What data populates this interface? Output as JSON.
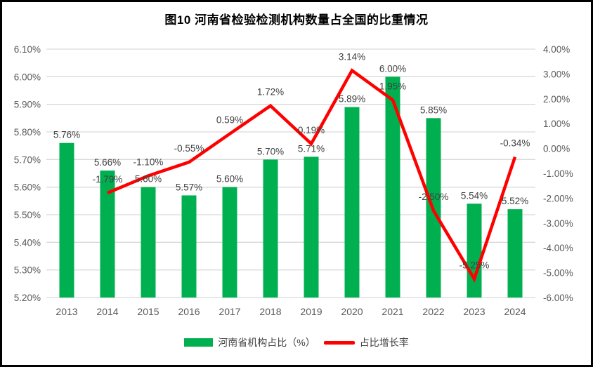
{
  "title": "图10  河南省检验检测机构数量占全国的比重情况",
  "legend": {
    "bar_label": "河南省机构占比（%）",
    "line_label": "占比增长率"
  },
  "colors": {
    "bar": "#00B050",
    "line": "#FF0000",
    "grid": "#D9D9D9",
    "axis_line": "#D9D9D9",
    "tick_text": "#595959",
    "data_label_text": "#404040",
    "background": "#FFFFFF",
    "border": "#000000"
  },
  "chart_data": {
    "type": "bar",
    "subtype": "combo-bar-line-dual-axis",
    "title": "图10  河南省检验检测机构数量占全国的比重情况",
    "categories": [
      "2013",
      "2014",
      "2015",
      "2016",
      "2017",
      "2018",
      "2019",
      "2020",
      "2021",
      "2022",
      "2023",
      "2024"
    ],
    "series": [
      {
        "name": "河南省机构占比（%）",
        "type": "bar",
        "axis": "left",
        "color": "#00B050",
        "values": [
          5.76,
          5.66,
          5.6,
          5.57,
          5.6,
          5.7,
          5.71,
          5.89,
          6.0,
          5.85,
          5.54,
          5.52
        ],
        "labels": [
          "5.76%",
          "5.66%",
          "5.60%",
          "5.57%",
          "5.60%",
          "5.70%",
          "5.71%",
          "5.89%",
          "6.00%",
          "5.85%",
          "5.54%",
          "5.52%"
        ]
      },
      {
        "name": "占比增长率",
        "type": "line",
        "axis": "right",
        "color": "#FF0000",
        "values": [
          null,
          -1.79,
          -1.1,
          -0.55,
          0.59,
          1.72,
          0.19,
          3.14,
          1.95,
          -2.5,
          -5.25,
          -0.34
        ],
        "labels": [
          null,
          "-1.79%",
          "-1.10%",
          "-0.55%",
          "0.59%",
          "1.72%",
          "0.19%",
          "3.14%",
          "1.95%",
          "-2.50%",
          "-5.25%",
          "-0.34%"
        ]
      }
    ],
    "left_axis": {
      "min": 5.2,
      "max": 6.1,
      "step": 0.1,
      "ticks_top_to_bottom": [
        "6.10%",
        "6.00%",
        "5.90%",
        "5.80%",
        "5.70%",
        "5.60%",
        "5.50%",
        "5.40%",
        "5.30%",
        "5.20%"
      ]
    },
    "right_axis": {
      "min": -6.0,
      "max": 4.0,
      "step": 1.0,
      "ticks_top_to_bottom": [
        "4.00%",
        "3.00%",
        "2.00%",
        "1.00%",
        "0.00%",
        "-1.00%",
        "-2.00%",
        "-3.00%",
        "-4.00%",
        "-5.00%",
        "-6.00%"
      ]
    },
    "grid": true,
    "legend_position": "bottom"
  }
}
